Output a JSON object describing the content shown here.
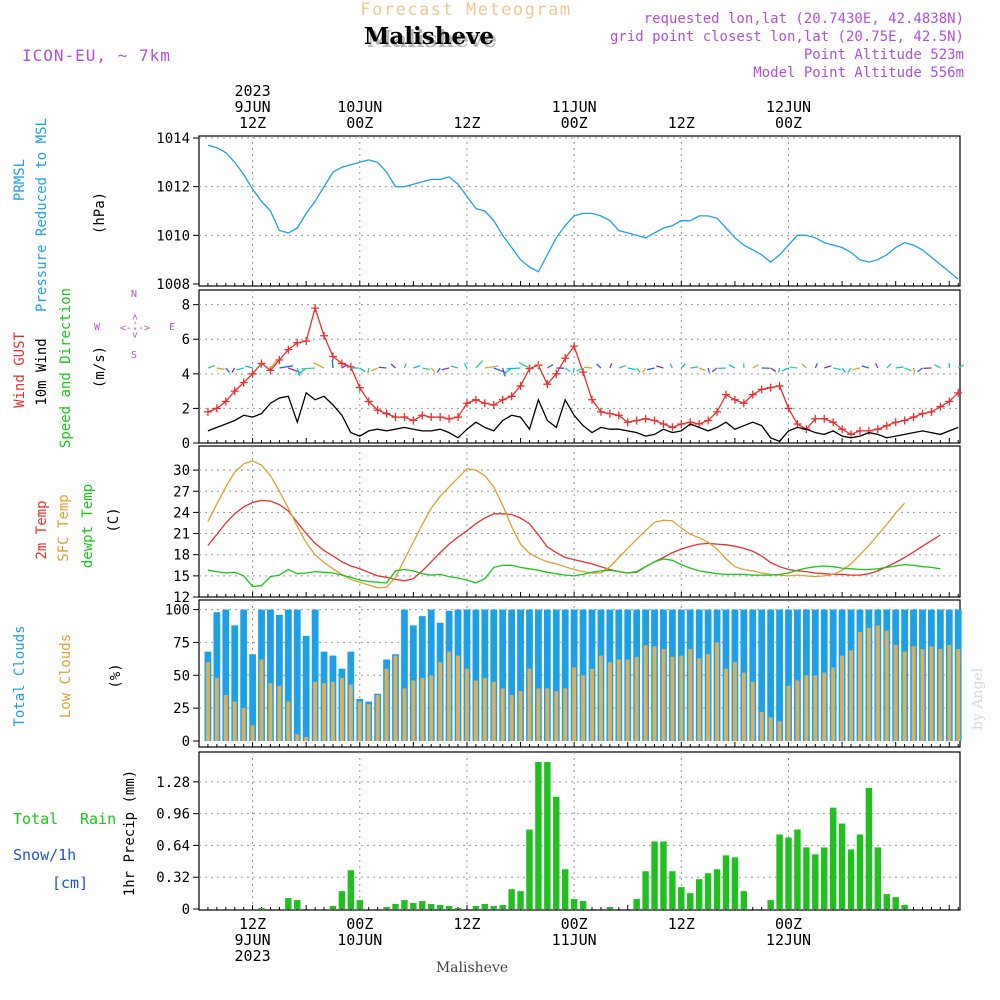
{
  "header": {
    "product": "Forecast Meteogram",
    "model": "ICON-EU, ~ 7km",
    "location": "Malisheve",
    "requested_point": "requested lon,lat (20.7430E, 42.4838N)",
    "grid_point": "grid point closest lon,lat (20.75E, 42.5N)",
    "point_altitude": "Point Altitude 523m",
    "model_altitude": "Model Point Altitude 556m",
    "footer_location": "Malisheve",
    "watermark": "by Angel"
  },
  "time_axis": {
    "year": "2023",
    "ticks": [
      {
        "hour": 12,
        "top": [
          "2023",
          "9JUN",
          "12Z"
        ],
        "bottom": [
          "12Z",
          "9JUN",
          "2023"
        ]
      },
      {
        "hour": 24,
        "top": [
          "10JUN",
          "00Z"
        ],
        "bottom": [
          "00Z",
          "10JUN"
        ]
      },
      {
        "hour": 36,
        "top": [
          "12Z"
        ],
        "bottom": [
          "12Z"
        ]
      },
      {
        "hour": 48,
        "top": [
          "11JUN",
          "00Z"
        ],
        "bottom": [
          "00Z",
          "11JUN"
        ]
      },
      {
        "hour": 60,
        "top": [
          "12Z"
        ],
        "bottom": [
          "12Z"
        ]
      },
      {
        "hour": 72,
        "top": [
          "12JUN",
          "00Z"
        ],
        "bottom": [
          "00Z",
          "12JUN"
        ]
      }
    ]
  },
  "panel_labels": {
    "pressure": [
      "PRMSL",
      "Pressure Reduced to MSL",
      "(hPa)"
    ],
    "wind": [
      "Wind GUST",
      "10m Wind",
      "Speed and Direction",
      "(m/s)"
    ],
    "compass": {
      "n": "N",
      "s": "S",
      "w": "W",
      "e": "E",
      "ns": "<-->",
      "we": "<--->"
    },
    "temp": [
      "2m Temp",
      "SFC Temp",
      "dewpt Temp",
      "(C)"
    ],
    "clouds": [
      "Total Clouds",
      "Low Clouds",
      "(%)"
    ],
    "precip": [
      "Total",
      "Rain",
      "Snow/1h",
      "[cm]",
      "1hr Precip (mm)"
    ]
  },
  "colors": {
    "pressure": "#1ea0e6",
    "gust": "#e83030",
    "wind": "#000000",
    "temp2m": "#e83030",
    "sfc": "#e0a030",
    "dewpt": "#18c818",
    "total_cloud": "#1ea0e6",
    "low_cloud": "#d8b060",
    "precip": "#20c020",
    "label_purple": "#b050d8",
    "label_blue": "#2050e0",
    "header_orange": "#f0c890"
  },
  "chart_data": [
    {
      "type": "line",
      "name": "pressure",
      "x_start_hour": 7,
      "x_step_hours": 1,
      "ylim": [
        1008,
        1014
      ],
      "yticks": [
        1008,
        1010,
        1012,
        1014
      ],
      "grid": true,
      "series": [
        {
          "name": "PRMSL",
          "values": [
            1013.7,
            1013.6,
            1013.4,
            1013.0,
            1012.5,
            1011.9,
            1011.4,
            1011.0,
            1010.2,
            1010.1,
            1010.3,
            1010.9,
            1011.4,
            1012.0,
            1012.6,
            1012.8,
            1012.9,
            1013.0,
            1013.1,
            1013.0,
            1012.6,
            1012.0,
            1012.0,
            1012.1,
            1012.2,
            1012.3,
            1012.3,
            1012.4,
            1012.1,
            1011.6,
            1011.1,
            1011.0,
            1010.6,
            1010.0,
            1009.5,
            1009.0,
            1008.7,
            1008.5,
            1009.2,
            1009.9,
            1010.4,
            1010.8,
            1010.9,
            1010.9,
            1010.8,
            1010.6,
            1010.2,
            1010.1,
            1010.0,
            1009.9,
            1010.1,
            1010.3,
            1010.4,
            1010.6,
            1010.6,
            1010.8,
            1010.8,
            1010.7,
            1010.3,
            1009.9,
            1009.6,
            1009.4,
            1009.2,
            1008.9,
            1009.2,
            1009.6,
            1010.0,
            1010.0,
            1009.9,
            1009.7,
            1009.6,
            1009.5,
            1009.3,
            1009.0,
            1008.9,
            1009.0,
            1009.2,
            1009.5,
            1009.7,
            1009.6,
            1009.4,
            1009.1,
            1008.8,
            1008.5,
            1008.2
          ]
        }
      ]
    },
    {
      "type": "line",
      "name": "wind",
      "x_start_hour": 7,
      "x_step_hours": 1,
      "ylim": [
        0,
        8.5
      ],
      "yticks": [
        0,
        2,
        4,
        6,
        8
      ],
      "grid": true,
      "series": [
        {
          "name": "Wind GUST",
          "values": [
            1.8,
            2.0,
            2.4,
            3.0,
            3.5,
            4.0,
            4.6,
            4.2,
            4.8,
            5.4,
            5.8,
            5.9,
            7.8,
            6.2,
            5.0,
            4.6,
            4.4,
            3.2,
            2.4,
            1.9,
            1.7,
            1.5,
            1.5,
            1.3,
            1.6,
            1.5,
            1.5,
            1.4,
            1.5,
            2.3,
            2.5,
            2.3,
            2.2,
            2.5,
            2.7,
            3.3,
            4.3,
            4.5,
            3.4,
            4.0,
            4.9,
            5.6,
            4.1,
            2.5,
            1.8,
            1.7,
            1.6,
            1.2,
            1.3,
            1.4,
            1.3,
            1.1,
            0.9,
            1.1,
            1.2,
            1.1,
            1.3,
            1.8,
            2.8,
            2.5,
            2.3,
            2.8,
            3.1,
            3.2,
            3.3,
            2.0,
            1.1,
            0.8,
            1.4,
            1.4,
            1.2,
            0.8,
            0.5,
            0.7,
            0.7,
            0.8,
            1.0,
            1.2,
            1.3,
            1.5,
            1.7,
            1.8,
            2.1,
            2.4,
            2.9
          ]
        },
        {
          "name": "10m Wind",
          "values": [
            0.7,
            0.9,
            1.1,
            1.3,
            1.6,
            1.5,
            1.7,
            2.3,
            2.6,
            2.7,
            1.2,
            2.9,
            2.5,
            2.7,
            2.2,
            1.6,
            0.6,
            0.4,
            0.7,
            0.8,
            0.7,
            0.8,
            0.9,
            0.8,
            0.7,
            0.7,
            0.8,
            0.6,
            0.3,
            0.8,
            1.2,
            0.9,
            0.7,
            1.3,
            1.6,
            1.5,
            0.8,
            2.5,
            1.3,
            0.9,
            2.5,
            1.6,
            1.0,
            0.6,
            0.9,
            0.8,
            0.8,
            0.7,
            0.6,
            0.4,
            0.5,
            0.8,
            0.6,
            0.7,
            1.1,
            0.9,
            0.7,
            0.9,
            1.2,
            0.8,
            1.0,
            1.2,
            1.0,
            0.3,
            0.1,
            0.7,
            0.9,
            0.8,
            0.6,
            0.5,
            0.7,
            0.4,
            0.3,
            0.4,
            0.6,
            0.5,
            0.3,
            0.4,
            0.5,
            0.6,
            0.7,
            0.6,
            0.5,
            0.7,
            0.9
          ]
        }
      ]
    },
    {
      "type": "line",
      "name": "temperature",
      "x_start_hour": 7,
      "x_step_hours": 1,
      "ylim": [
        12,
        32
      ],
      "yticks": [
        12,
        15,
        18,
        21,
        24,
        27,
        30
      ],
      "grid": true,
      "series": [
        {
          "name": "2m Temp",
          "values": [
            19.3,
            20.9,
            22.5,
            23.8,
            24.8,
            25.4,
            25.7,
            25.6,
            25.1,
            24.2,
            22.6,
            21.0,
            19.6,
            18.6,
            17.8,
            17.0,
            16.4,
            16.0,
            15.5,
            15.0,
            14.8,
            14.5,
            14.3,
            14.6,
            15.7,
            17.0,
            18.3,
            19.5,
            20.5,
            21.4,
            22.4,
            23.2,
            23.8,
            23.8,
            23.7,
            23.2,
            22.4,
            20.8,
            19.1,
            18.3,
            17.6,
            17.3,
            17.0,
            16.7,
            16.3,
            15.9,
            15.6,
            15.4,
            15.5,
            16.3,
            17.0,
            17.6,
            18.3,
            18.8,
            19.2,
            19.5,
            19.6,
            19.5,
            19.4,
            19.2,
            18.9,
            18.5,
            17.8,
            16.9,
            16.3,
            15.9,
            15.7,
            15.6,
            15.4,
            15.3,
            15.2,
            15.2,
            15.1,
            15.1,
            15.3,
            15.7,
            16.3,
            16.9,
            17.6,
            18.4,
            19.2,
            20.0,
            20.8
          ]
        },
        {
          "name": "SFC Temp",
          "values": [
            22.7,
            25.2,
            27.6,
            29.7,
            30.9,
            31.3,
            30.7,
            29.2,
            27.0,
            24.6,
            22.0,
            19.7,
            18.0,
            16.9,
            16.0,
            15.2,
            14.5,
            14.1,
            13.7,
            13.3,
            13.4,
            14.8,
            17.3,
            19.8,
            22.3,
            24.6,
            26.3,
            27.6,
            28.9,
            30.2,
            30.0,
            29.2,
            27.6,
            25.0,
            22.0,
            19.5,
            18.2,
            17.5,
            17.0,
            16.7,
            16.3,
            15.9,
            15.6,
            15.4,
            15.4,
            16.3,
            17.6,
            18.9,
            20.2,
            21.4,
            22.6,
            22.9,
            22.8,
            21.8,
            20.9,
            20.4,
            19.8,
            18.8,
            17.4,
            16.3,
            15.9,
            15.7,
            15.4,
            15.2,
            15.1,
            15.0,
            15.1,
            15.0,
            14.9,
            15.0,
            15.2,
            15.8,
            16.7,
            18.0,
            19.3,
            20.8,
            22.3,
            23.9,
            25.3
          ]
        },
        {
          "name": "dewpt Temp",
          "values": [
            15.8,
            15.6,
            15.4,
            15.5,
            15.0,
            13.5,
            13.6,
            14.9,
            15.1,
            15.9,
            15.3,
            15.4,
            15.6,
            15.5,
            15.4,
            15.1,
            14.8,
            14.4,
            14.2,
            14.1,
            14.0,
            15.7,
            15.9,
            15.7,
            15.3,
            15.1,
            15.2,
            14.9,
            14.7,
            14.4,
            14.0,
            14.6,
            16.2,
            16.5,
            16.5,
            16.2,
            16.0,
            15.8,
            15.5,
            15.3,
            15.1,
            15.0,
            15.2,
            15.5,
            15.7,
            15.8,
            15.6,
            15.4,
            15.6,
            16.3,
            17.0,
            17.4,
            17.2,
            16.6,
            16.1,
            15.7,
            15.5,
            15.3,
            15.2,
            15.2,
            15.2,
            15.1,
            15.1,
            15.1,
            15.2,
            15.4,
            15.8,
            16.1,
            16.3,
            16.4,
            16.3,
            16.1,
            16.0,
            15.9,
            15.9,
            16.0,
            16.2,
            16.4,
            16.6,
            16.5,
            16.3,
            16.2,
            16.0
          ]
        }
      ]
    },
    {
      "type": "bar",
      "name": "clouds",
      "x_start_hour": 7,
      "x_step_hours": 1,
      "ylim": [
        0,
        105
      ],
      "yticks": [
        0,
        25,
        50,
        75,
        100
      ],
      "grid": true,
      "series": [
        {
          "name": "Total Clouds",
          "values": [
            68,
            98,
            100,
            88,
            100,
            66,
            100,
            100,
            96,
            100,
            100,
            80,
            100,
            68,
            65,
            55,
            68,
            32,
            30,
            36,
            62,
            66,
            100,
            88,
            95,
            100,
            90,
            99,
            100,
            100,
            100,
            100,
            100,
            100,
            100,
            100,
            100,
            100,
            100,
            100,
            100,
            100,
            100,
            100,
            100,
            100,
            100,
            100,
            100,
            100,
            100,
            100,
            100,
            100,
            100,
            100,
            100,
            100,
            100,
            100,
            100,
            100,
            100,
            100,
            100,
            100,
            100,
            100,
            100,
            100,
            100,
            100,
            100,
            100,
            100,
            100,
            100,
            100,
            100,
            100,
            100,
            100,
            100,
            100,
            100
          ]
        },
        {
          "name": "Low Clouds",
          "values": [
            60,
            48,
            35,
            30,
            25,
            12,
            62,
            44,
            42,
            30,
            5,
            3,
            45,
            44,
            45,
            48,
            43,
            30,
            28,
            35,
            55,
            65,
            40,
            46,
            48,
            50,
            60,
            68,
            65,
            55,
            46,
            48,
            45,
            40,
            35,
            38,
            55,
            40,
            40,
            38,
            40,
            56,
            50,
            55,
            65,
            60,
            62,
            62,
            64,
            73,
            72,
            70,
            64,
            65,
            70,
            63,
            66,
            75,
            55,
            60,
            52,
            45,
            22,
            18,
            15,
            42,
            46,
            50,
            50,
            52,
            56,
            65,
            69,
            83,
            86,
            88,
            84,
            73,
            68,
            72,
            70,
            72,
            70,
            73,
            70
          ]
        }
      ]
    },
    {
      "type": "bar",
      "name": "precipitation",
      "x_start_hour": 7,
      "x_step_hours": 1,
      "ylim": [
        0,
        1.5
      ],
      "yticks": [
        0,
        0.32,
        0.64,
        0.96,
        1.28
      ],
      "ytick_labels": [
        "0",
        "0.32",
        "0.64",
        "0.96",
        "1.28"
      ],
      "grid": true,
      "series": [
        {
          "name": "Total Rain",
          "values": [
            0,
            0,
            0,
            0,
            0,
            0,
            0.01,
            0,
            0,
            0.11,
            0.09,
            0,
            0,
            0,
            0.03,
            0.18,
            0.39,
            0.09,
            0,
            0,
            0.02,
            0.05,
            0.09,
            0.06,
            0.08,
            0.05,
            0.04,
            0.03,
            0.01,
            0,
            0.03,
            0.05,
            0.03,
            0.04,
            0.2,
            0.18,
            0.8,
            1.48,
            1.48,
            1.13,
            0.4,
            0.1,
            0.08,
            0,
            0,
            0.02,
            0,
            0,
            0.1,
            0.38,
            0.68,
            0.68,
            0.38,
            0.22,
            0.16,
            0.3,
            0.36,
            0.4,
            0.54,
            0.52,
            0.18,
            0,
            0,
            0.09,
            0.75,
            0.72,
            0.8,
            0.62,
            0.55,
            0.62,
            1.02,
            0.86,
            0.6,
            0.75,
            1.22,
            0.62,
            0.15,
            0.12,
            0.04
          ]
        }
      ]
    }
  ]
}
